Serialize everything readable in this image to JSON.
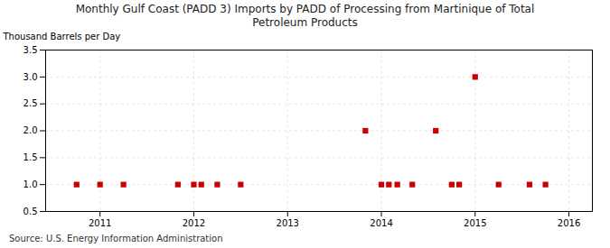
{
  "chart_data": {
    "type": "scatter",
    "title": "Monthly Gulf Coast (PADD 3) Imports by PADD of Processing from Martinique of Total\nPetroleum Products",
    "ylabel": "Thousand Barrels per Day",
    "annotations": [
      "Source: U.S. Energy Information Administration"
    ],
    "x": [
      2010.75,
      2011.0,
      2011.25,
      2011.83,
      2012.0,
      2012.08,
      2012.25,
      2012.5,
      2013.83,
      2014.0,
      2014.08,
      2014.17,
      2014.33,
      2014.58,
      2014.75,
      2014.83,
      2015.0,
      2015.25,
      2015.58,
      2015.75
    ],
    "values": [
      1.0,
      1.0,
      1.0,
      1.0,
      1.0,
      1.0,
      1.0,
      1.0,
      2.0,
      1.0,
      1.0,
      1.0,
      1.0,
      2.0,
      1.0,
      1.0,
      3.0,
      1.0,
      1.0,
      1.0
    ],
    "color": "#cc0000",
    "marker": "square",
    "xlim": [
      2010.42,
      2016.25
    ],
    "xticks": [
      2011,
      2012,
      2013,
      2014,
      2015,
      2016
    ],
    "ylim": [
      0.5,
      3.5
    ],
    "yticks": [
      0.5,
      {
        "value": 1.0,
        "label": "1.0"
      },
      1.5,
      {
        "value": 2.0,
        "label": "2.0"
      },
      2.5,
      {
        "value": 3.0,
        "label": "3.0"
      },
      3.5
    ],
    "grid": true
  }
}
